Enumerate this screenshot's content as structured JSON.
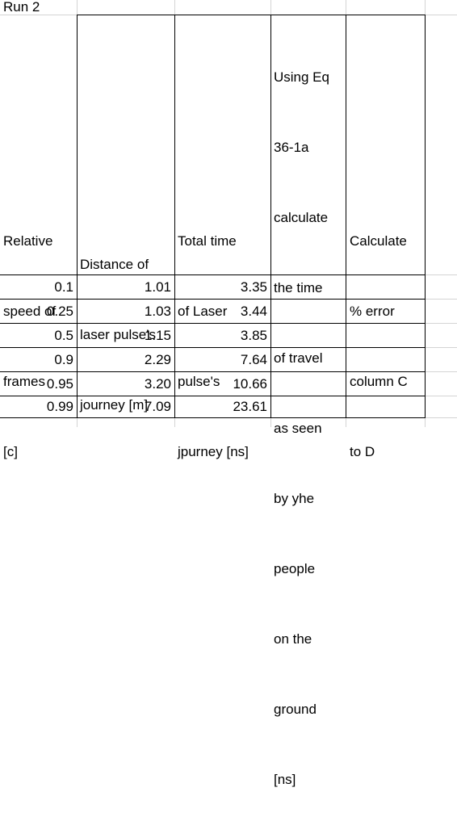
{
  "sheet": {
    "run_label": "Run 2",
    "headers": [
      [
        "Relative",
        "speed of",
        "frames",
        "[c]"
      ],
      [
        "Distance of",
        "laser pulse's",
        "journey [m]"
      ],
      [
        "Total time",
        "of Laser",
        "pulse's",
        "jpurney [ns]"
      ],
      [
        "Using Eq",
        "36-1a",
        "calculate",
        "the time",
        "of travel",
        "as seen",
        "by yhe",
        "people",
        "on the",
        "ground",
        "[ns]"
      ],
      [
        "Calculate",
        "% error",
        "column C",
        "to D"
      ]
    ],
    "rows": [
      [
        "0.1",
        "1.01",
        "3.35",
        "",
        ""
      ],
      [
        "0.25",
        "1.03",
        "3.44",
        "",
        ""
      ],
      [
        "0.5",
        "1.15",
        "3.85",
        "",
        ""
      ],
      [
        "0.9",
        "2.29",
        "7.64",
        "",
        ""
      ],
      [
        "0.95",
        "3.20",
        "10.66",
        "",
        ""
      ],
      [
        "0.99",
        "7.09",
        "23.61",
        "",
        ""
      ]
    ]
  }
}
